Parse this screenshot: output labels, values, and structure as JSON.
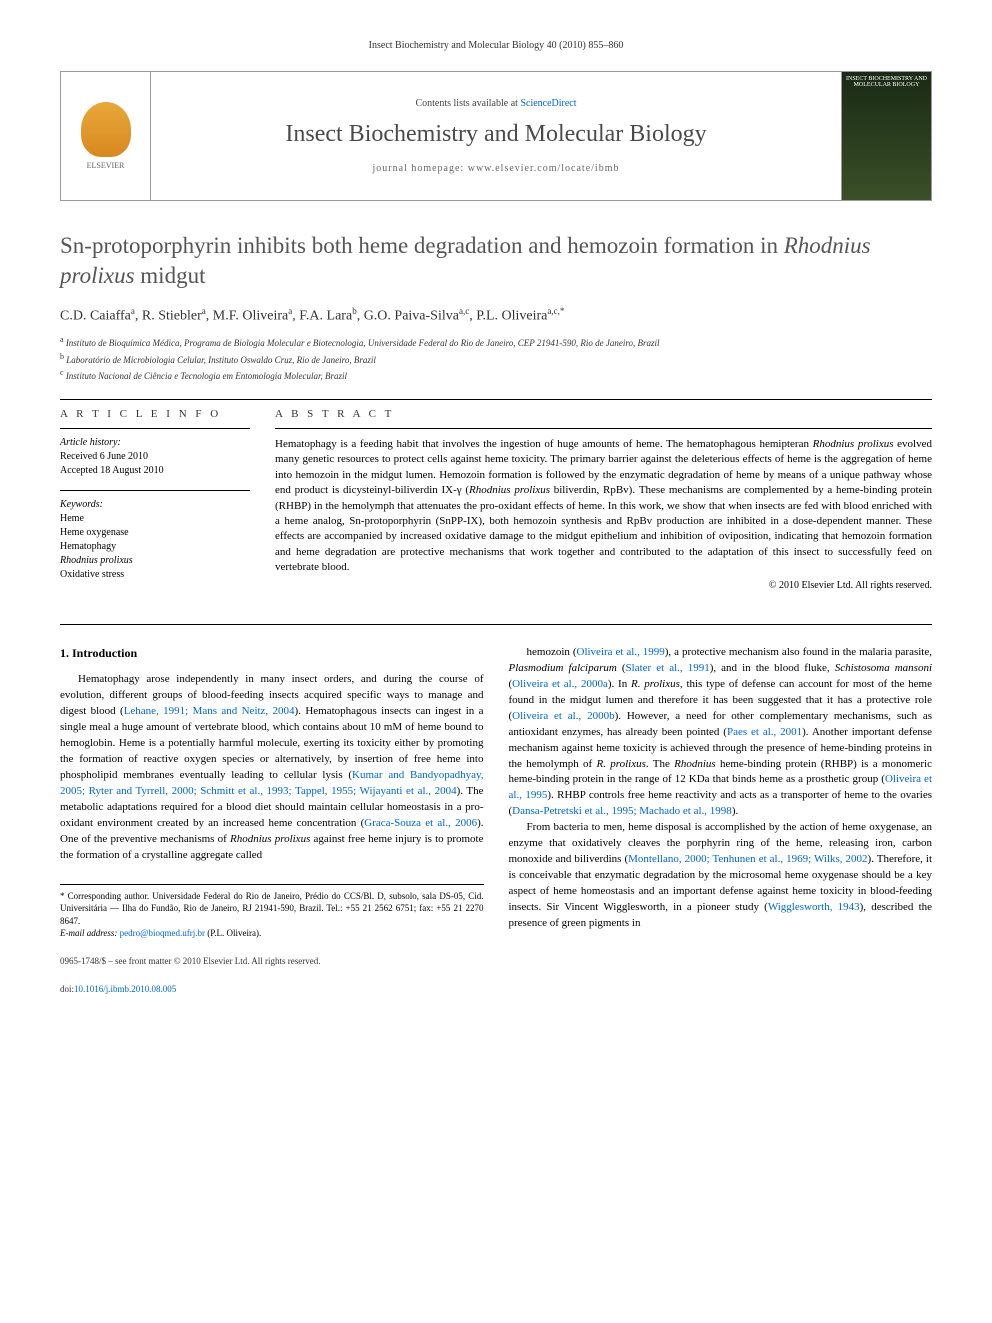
{
  "running_header": "Insect Biochemistry and Molecular Biology 40 (2010) 855–860",
  "header": {
    "contents_prefix": "Contents lists available at ",
    "contents_link": "ScienceDirect",
    "journal_name": "Insect Biochemistry and Molecular Biology",
    "homepage_prefix": "journal homepage: ",
    "homepage_url": "www.elsevier.com/locate/ibmb",
    "publisher": "ELSEVIER",
    "cover_text": "INSECT BIOCHEMISTRY AND MOLECULAR BIOLOGY"
  },
  "title_html": "Sn-protoporphyrin inhibits both heme degradation and hemozoin formation in <em>Rhodnius prolixus</em> midgut",
  "authors_html": "C.D. Caiaffa<sup>a</sup>, R. Stiebler<sup>a</sup>, M.F. Oliveira<sup>a</sup>, F.A. Lara<sup>b</sup>, G.O. Paiva-Silva<sup>a,c</sup>, P.L. Oliveira<sup>a,c,*</sup>",
  "affiliations": [
    "<sup>a</sup> Instituto de Bioquímica Médica, Programa de Biologia Molecular e Biotecnologia, Universidade Federal do Rio de Janeiro, CEP 21941-590, Rio de Janeiro, Brazil",
    "<sup>b</sup> Laboratório de Microbiologia Celular, Instituto Oswaldo Cruz, Rio de Janeiro, Brazil",
    "<sup>c</sup> Instituto Nacional de Ciência e Tecnologia em Entomologia Molecular, Brazil"
  ],
  "info": {
    "heading1": "A R T I C L E   I N F O",
    "history_label": "Article history:",
    "received": "Received 6 June 2010",
    "accepted": "Accepted 18 August 2010",
    "keywords_label": "Keywords:",
    "keywords": [
      "Heme",
      "Heme oxygenase",
      "Hematophagy",
      "Rhodnius prolixus",
      "Oxidative stress"
    ]
  },
  "abstract": {
    "heading": "A B S T R A C T",
    "text_html": "Hematophagy is a feeding habit that involves the ingestion of huge amounts of heme. The hematophagous hemipteran <em>Rhodnius prolixus</em> evolved many genetic resources to protect cells against heme toxicity. The primary barrier against the deleterious effects of heme is the aggregation of heme into hemozoin in the midgut lumen. Hemozoin formation is followed by the enzymatic degradation of heme by means of a unique pathway whose end product is dicysteinyl-biliverdin IX-γ (<em>Rhodnius prolixus</em> biliverdin, RpBv). These mechanisms are complemented by a heme-binding protein (RHBP) in the hemolymph that attenuates the pro-oxidant effects of heme. In this work, we show that when insects are fed with blood enriched with a heme analog, Sn-protoporphyrin (SnPP-IX), both hemozoin synthesis and RpBv production are inhibited in a dose-dependent manner. These effects are accompanied by increased oxidative damage to the midgut epithelium and inhibition of oviposition, indicating that hemozoin formation and heme degradation are protective mechanisms that work together and contributed to the adaptation of this insect to successfully feed on vertebrate blood.",
    "copyright": "© 2010 Elsevier Ltd. All rights reserved."
  },
  "body": {
    "section1_heading": "1. Introduction",
    "col1_html": "Hematophagy arose independently in many insect orders, and during the course of evolution, different groups of blood-feeding insects acquired specific ways to manage and digest blood (<span class='ref-link'>Lehane, 1991; Mans and Neitz, 2004</span>). Hematophagous insects can ingest in a single meal a huge amount of vertebrate blood, which contains about 10 mM of heme bound to hemoglobin. Heme is a potentially harmful molecule, exerting its toxicity either by promoting the formation of reactive oxygen species or alternatively, by insertion of free heme into phospholipid membranes eventually leading to cellular lysis (<span class='ref-link'>Kumar and Bandyopadhyay, 2005; Ryter and Tyrrell, 2000; Schmitt et al., 1993; Tappel, 1955; Wijayanti et al., 2004</span>). The metabolic adaptations required for a blood diet should maintain cellular homeostasis in a pro-oxidant environment created by an increased heme concentration (<span class='ref-link'>Graca-Souza et al., 2006</span>). One of the preventive mechanisms of <em>Rhodnius prolixus</em> against free heme injury is to promote the formation of a crystalline aggregate called",
    "col2_html": "hemozoin (<span class='ref-link'>Oliveira et al., 1999</span>), a protective mechanism also found in the malaria parasite, <em>Plasmodium falciparum</em> (<span class='ref-link'>Slater et al., 1991</span>), and in the blood fluke, <em>Schistosoma mansoni</em> (<span class='ref-link'>Oliveira et al., 2000a</span>). In <em>R. prolixus</em>, this type of defense can account for most of the heme found in the midgut lumen and therefore it has been suggested that it has a protective role (<span class='ref-link'>Oliveira et al., 2000b</span>). However, a need for other complementary mechanisms, such as antioxidant enzymes, has already been pointed (<span class='ref-link'>Paes et al., 2001</span>). Another important defense mechanism against heme toxicity is achieved through the presence of heme-binding proteins in the hemolymph of <em>R. prolixus</em>. The <em>Rhodnius</em> heme-binding protein (RHBP) is a monomeric heme-binding protein in the range of 12 KDa that binds heme as a prosthetic group (<span class='ref-link'>Oliveira et al., 1995</span>). RHBP controls free heme reactivity and acts as a transporter of heme to the ovaries (<span class='ref-link'>Dansa-Petretski et al., 1995; Machado et al., 1998</span>).",
    "col2_p2_html": "From bacteria to men, heme disposal is accomplished by the action of heme oxygenase, an enzyme that oxidatively cleaves the porphyrin ring of the heme, releasing iron, carbon monoxide and biliverdins (<span class='ref-link'>Montellano, 2000; Tenhunen et al., 1969; Wilks, 2002</span>). Therefore, it is conceivable that enzymatic degradation by the microsomal heme oxygenase should be a key aspect of heme homeostasis and an important defense against heme toxicity in blood-feeding insects. Sir Vincent Wigglesworth, in a pioneer study (<span class='ref-link'>Wigglesworth, 1943</span>), described the presence of green pigments in"
  },
  "footnotes": {
    "corresponding": "* Corresponding author. Universidade Federal do Rio de Janeiro, Prédio do CCS/Bl. D, subsolo, sala DS-05, Cid. Universitária — Ilha do Fundão, Rio de Janeiro, RJ 21941-590, Brazil. Tel.: +55 21 2562 6751; fax: +55 21 2270 8647.",
    "email_label": "E-mail address: ",
    "email": "pedro@bioqmed.ufrj.br",
    "email_suffix": " (P.L. Oliveira)."
  },
  "footer": {
    "issn": "0965-1748/$ – see front matter © 2010 Elsevier Ltd. All rights reserved.",
    "doi_label": "doi:",
    "doi": "10.1016/j.ibmb.2010.08.005"
  },
  "colors": {
    "link": "#0066cc",
    "title_gray": "#555555",
    "text": "#000000"
  }
}
